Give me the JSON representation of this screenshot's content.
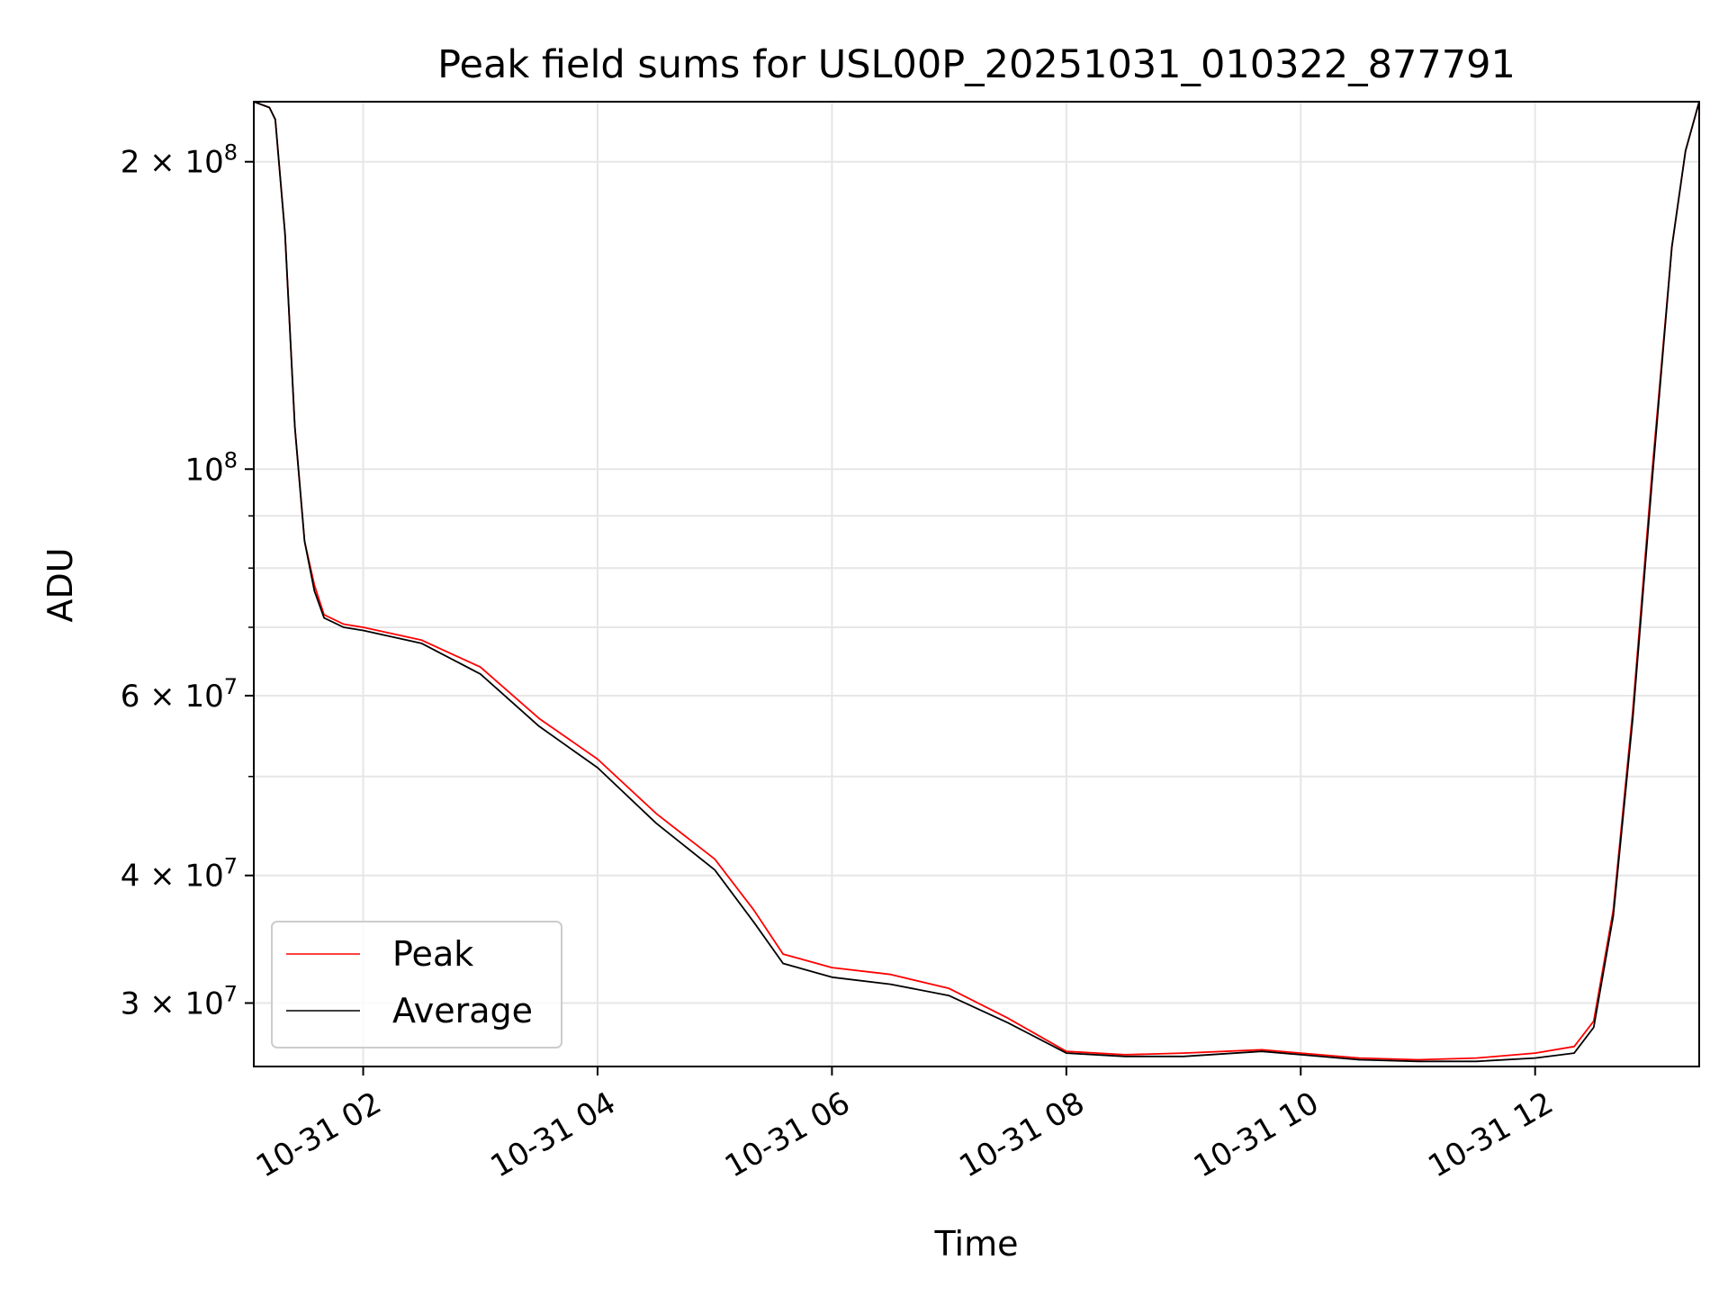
{
  "chart_data": {
    "type": "line",
    "title": "Peak field sums for USL00P_20251031_010322_877791",
    "xlabel": "Time",
    "ylabel": "ADU",
    "yscale": "log",
    "xlim": [
      "2025-10-31 01:04",
      "2025-10-31 13:24"
    ],
    "ylim": [
      26000000,
      229000000
    ],
    "grid": true,
    "legend_position": "lower-left",
    "x_tick_labels": [
      "10-31 02",
      "10-31 04",
      "10-31 06",
      "10-31 08",
      "10-31 10",
      "10-31 12"
    ],
    "y_tick_labels": [
      {
        "value": 200000000,
        "mantissa": "2",
        "exp": "8"
      },
      {
        "value": 100000000,
        "mantissa": "",
        "exp": "8"
      },
      {
        "value": 60000000,
        "mantissa": "6",
        "exp": "7"
      },
      {
        "value": 40000000,
        "mantissa": "4",
        "exp": "7"
      },
      {
        "value": 30000000,
        "mantissa": "3",
        "exp": "7"
      }
    ],
    "y_minor_ticks": [
      50000000,
      70000000,
      80000000,
      90000000
    ],
    "series": [
      {
        "name": "Peak",
        "color": "#ff0000",
        "x": [
          "2025-10-31 01:04",
          "2025-10-31 01:12",
          "2025-10-31 01:15",
          "2025-10-31 01:20",
          "2025-10-31 01:25",
          "2025-10-31 01:30",
          "2025-10-31 01:35",
          "2025-10-31 01:40",
          "2025-10-31 01:50",
          "2025-10-31 02:00",
          "2025-10-31 02:30",
          "2025-10-31 03:00",
          "2025-10-31 03:30",
          "2025-10-31 04:00",
          "2025-10-31 04:30",
          "2025-10-31 05:00",
          "2025-10-31 05:20",
          "2025-10-31 05:35",
          "2025-10-31 06:00",
          "2025-10-31 06:30",
          "2025-10-31 07:00",
          "2025-10-31 07:30",
          "2025-10-31 08:00",
          "2025-10-31 08:30",
          "2025-10-31 09:00",
          "2025-10-31 09:40",
          "2025-10-31 10:00",
          "2025-10-31 10:30",
          "2025-10-31 11:00",
          "2025-10-31 11:30",
          "2025-10-31 12:00",
          "2025-10-31 12:20",
          "2025-10-31 12:30",
          "2025-10-31 12:40",
          "2025-10-31 12:50",
          "2025-10-31 13:00",
          "2025-10-31 13:10",
          "2025-10-31 13:17",
          "2025-10-31 13:24"
        ],
        "y": [
          229000000,
          226000000,
          220000000,
          170000000,
          110000000,
          85000000,
          77000000,
          72000000,
          70500000,
          70000000,
          68000000,
          64000000,
          57000000,
          52000000,
          46000000,
          41500000,
          37000000,
          33500000,
          32500000,
          32000000,
          31000000,
          29000000,
          26900000,
          26700000,
          26800000,
          27000000,
          26800000,
          26500000,
          26400000,
          26500000,
          26800000,
          27200000,
          28800000,
          37000000,
          58000000,
          100000000,
          165000000,
          205000000,
          229000000
        ]
      },
      {
        "name": "Average",
        "color": "#000000",
        "x": [
          "2025-10-31 01:04",
          "2025-10-31 01:12",
          "2025-10-31 01:15",
          "2025-10-31 01:20",
          "2025-10-31 01:25",
          "2025-10-31 01:30",
          "2025-10-31 01:35",
          "2025-10-31 01:40",
          "2025-10-31 01:50",
          "2025-10-31 02:00",
          "2025-10-31 02:30",
          "2025-10-31 03:00",
          "2025-10-31 03:30",
          "2025-10-31 04:00",
          "2025-10-31 04:30",
          "2025-10-31 05:00",
          "2025-10-31 05:20",
          "2025-10-31 05:35",
          "2025-10-31 06:00",
          "2025-10-31 06:30",
          "2025-10-31 07:00",
          "2025-10-31 07:30",
          "2025-10-31 08:00",
          "2025-10-31 08:30",
          "2025-10-31 09:00",
          "2025-10-31 09:40",
          "2025-10-31 10:00",
          "2025-10-31 10:30",
          "2025-10-31 11:00",
          "2025-10-31 11:30",
          "2025-10-31 12:00",
          "2025-10-31 12:20",
          "2025-10-31 12:30",
          "2025-10-31 12:40",
          "2025-10-31 12:50",
          "2025-10-31 13:00",
          "2025-10-31 13:10",
          "2025-10-31 13:17",
          "2025-10-31 13:24"
        ],
        "y": [
          229000000,
          226000000,
          220000000,
          170000000,
          110000000,
          85000000,
          76000000,
          71500000,
          70000000,
          69500000,
          67500000,
          63000000,
          56000000,
          51000000,
          45000000,
          40500000,
          36000000,
          32800000,
          31800000,
          31300000,
          30500000,
          28700000,
          26800000,
          26600000,
          26600000,
          26900000,
          26700000,
          26400000,
          26300000,
          26300000,
          26500000,
          26800000,
          28400000,
          36500000,
          57000000,
          98000000,
          165000000,
          205000000,
          229000000
        ]
      }
    ]
  }
}
